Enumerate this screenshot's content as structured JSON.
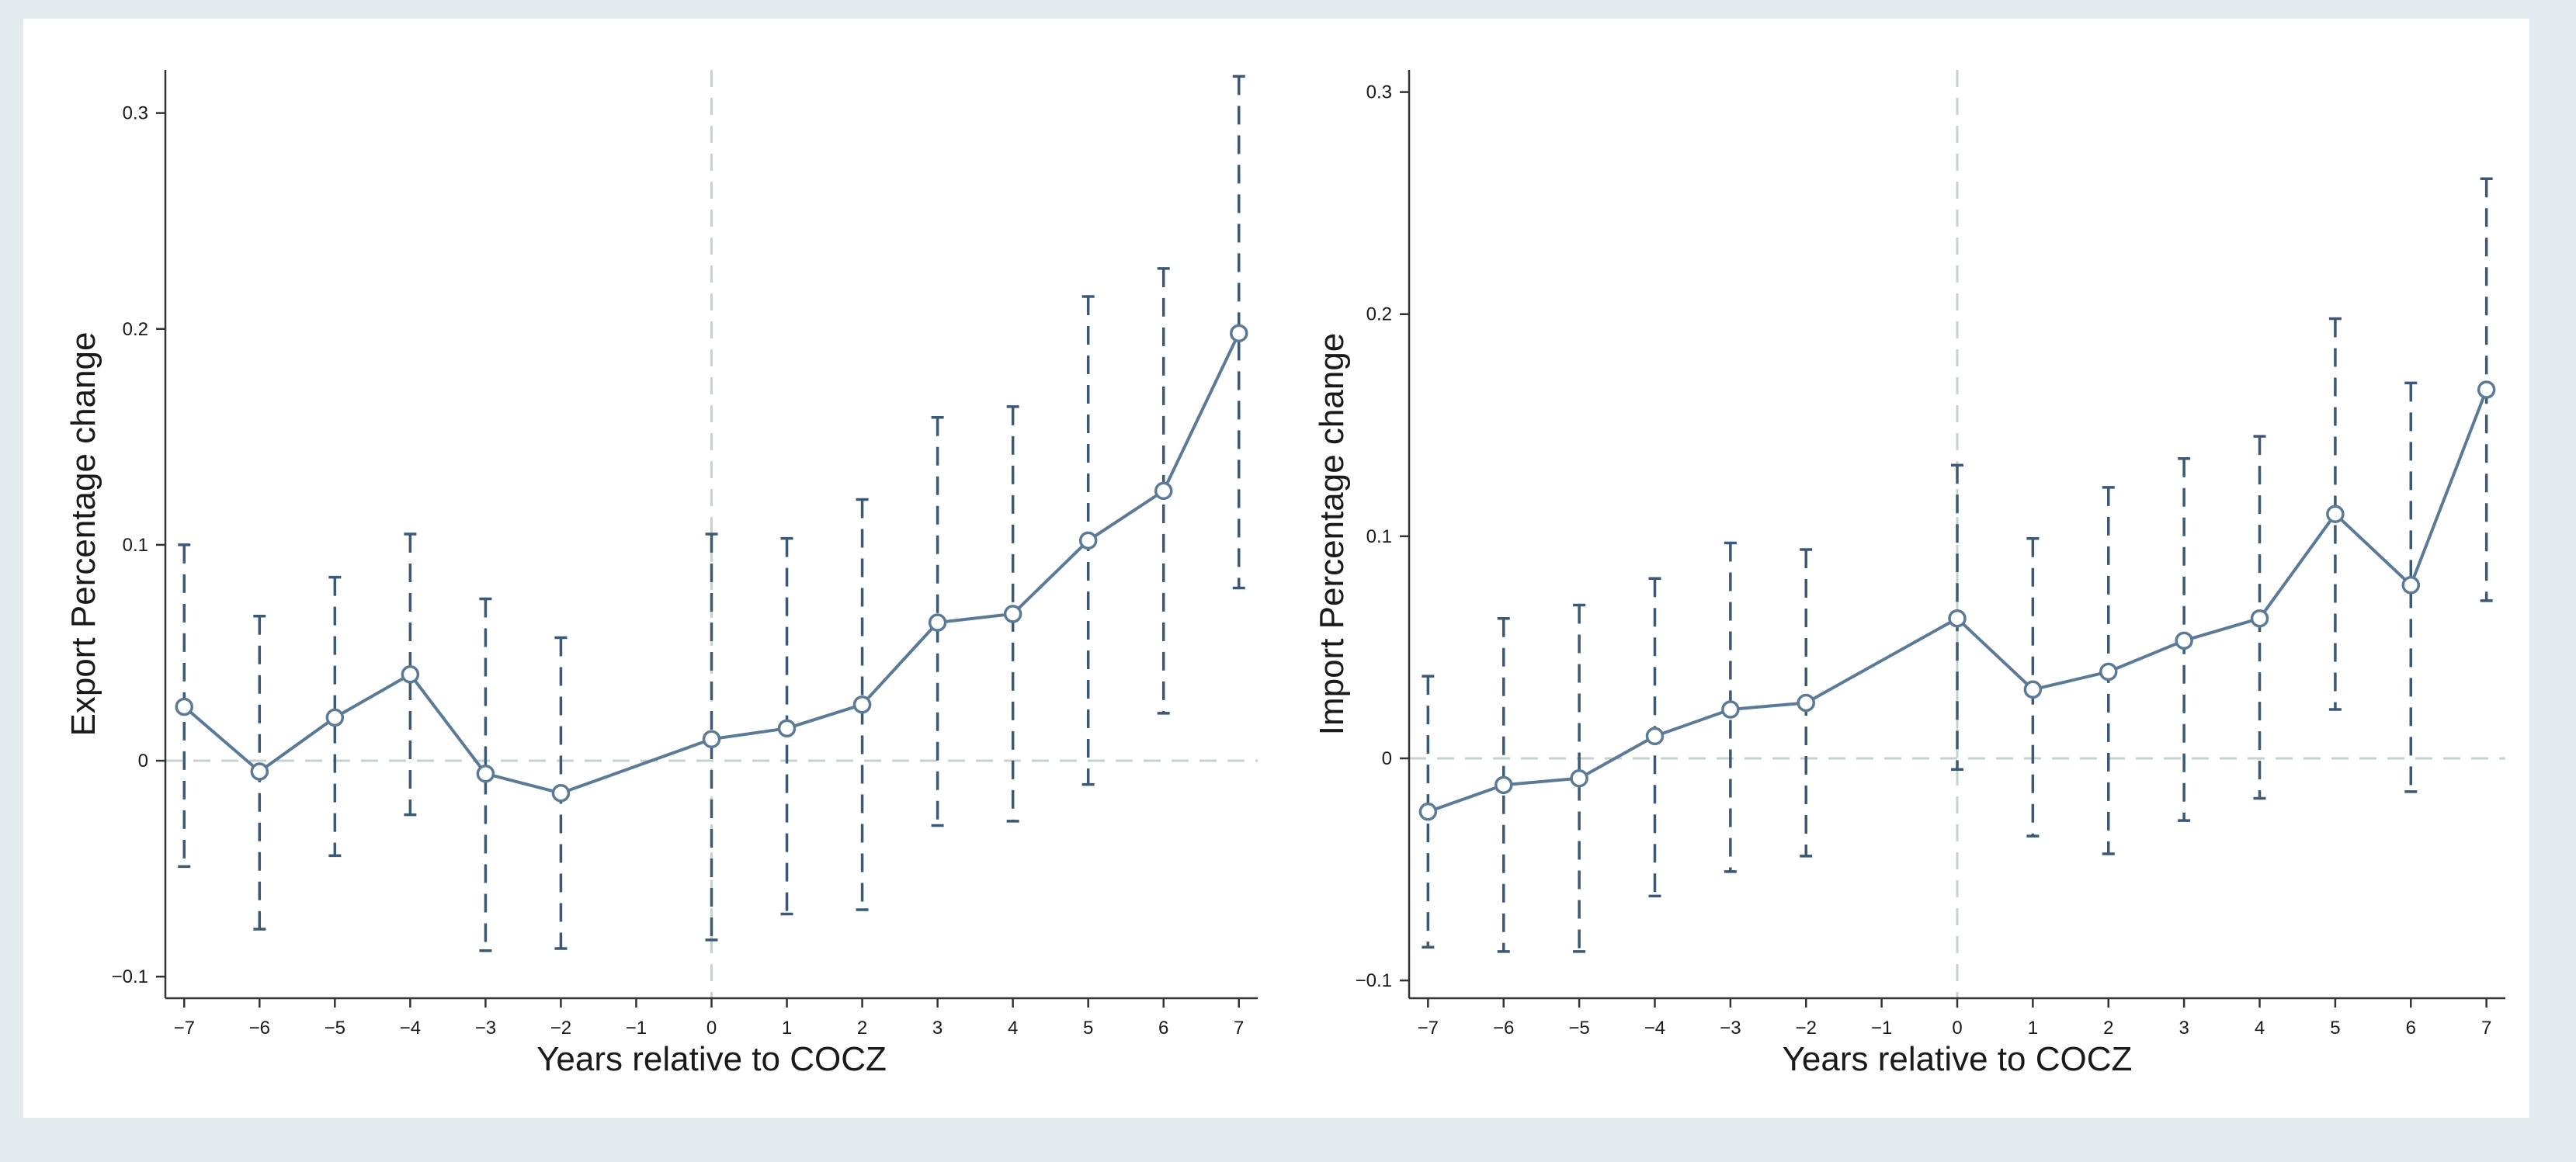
{
  "colors": {
    "series": "#5b7a98",
    "ci": "#3b5874",
    "refline": "#c5d3cf",
    "axis": "#333333",
    "background": "#e3ebef"
  },
  "chart_data": [
    {
      "type": "line",
      "title": "",
      "xlabel": "Years relative to COCZ",
      "ylabel": "Export Percentage change",
      "x": [
        -7,
        -6,
        -5,
        -4,
        -3,
        -2,
        0,
        1,
        2,
        3,
        4,
        5,
        6,
        7
      ],
      "xticks": [
        -7,
        -6,
        -5,
        -4,
        -3,
        -2,
        -1,
        0,
        1,
        2,
        3,
        4,
        5,
        6,
        7
      ],
      "xtick_labels": [
        "−7",
        "−6",
        "−5",
        "−4",
        "−3",
        "−2",
        "−1",
        "0",
        "1",
        "2",
        "3",
        "4",
        "5",
        "6",
        "7"
      ],
      "yticks": [
        -0.1,
        0,
        0.1,
        0.2,
        0.3
      ],
      "ytick_labels": [
        "−0.1",
        "0",
        "0.1",
        "0.2",
        "0.3"
      ],
      "xlim": [
        -7.25,
        7.25
      ],
      "ylim": [
        -0.11,
        0.32
      ],
      "series": [
        {
          "name": "Export Percentage change",
          "values": [
            0.025,
            -0.005,
            0.02,
            0.04,
            -0.006,
            -0.015,
            0.01,
            0.015,
            0.026,
            0.064,
            0.068,
            0.102,
            0.125,
            0.198
          ],
          "ci_low": [
            -0.049,
            -0.078,
            -0.044,
            -0.025,
            -0.088,
            -0.087,
            -0.083,
            -0.071,
            -0.069,
            -0.03,
            -0.028,
            -0.011,
            0.022,
            0.08
          ],
          "ci_high": [
            0.1,
            0.067,
            0.085,
            0.105,
            0.075,
            0.057,
            0.105,
            0.103,
            0.121,
            0.159,
            0.164,
            0.215,
            0.228,
            0.317
          ]
        }
      ],
      "reference_lines": {
        "x": 0,
        "y": 0
      }
    },
    {
      "type": "line",
      "title": "",
      "xlabel": "Years relative to COCZ",
      "ylabel": "Import Percentage change",
      "x": [
        -7,
        -6,
        -5,
        -4,
        -3,
        -2,
        0,
        1,
        2,
        3,
        4,
        5,
        6,
        7
      ],
      "xticks": [
        -7,
        -6,
        -5,
        -4,
        -3,
        -2,
        -1,
        0,
        1,
        2,
        3,
        4,
        5,
        6,
        7
      ],
      "xtick_labels": [
        "−7",
        "−6",
        "−5",
        "−4",
        "−3",
        "−2",
        "−1",
        "0",
        "1",
        "2",
        "3",
        "4",
        "5",
        "6",
        "7"
      ],
      "yticks": [
        -0.1,
        0,
        0.1,
        0.2,
        0.3
      ],
      "ytick_labels": [
        "−0.1",
        "0",
        "0.1",
        "0.2",
        "0.3"
      ],
      "xlim": [
        -7.25,
        7.25
      ],
      "ylim": [
        -0.108,
        0.31
      ],
      "series": [
        {
          "name": "Import Percentage change",
          "values": [
            -0.024,
            -0.012,
            -0.009,
            0.01,
            0.022,
            0.025,
            0.063,
            0.031,
            0.039,
            0.053,
            0.063,
            0.11,
            0.078,
            0.166
          ],
          "ci_low": [
            -0.085,
            -0.087,
            -0.087,
            -0.062,
            -0.051,
            -0.044,
            -0.005,
            -0.035,
            -0.043,
            -0.028,
            -0.018,
            0.022,
            -0.015,
            0.071
          ],
          "ci_high": [
            0.037,
            0.063,
            0.069,
            0.081,
            0.097,
            0.094,
            0.132,
            0.099,
            0.122,
            0.135,
            0.145,
            0.198,
            0.169,
            0.261
          ]
        }
      ],
      "reference_lines": {
        "x": 0,
        "y": 0
      }
    }
  ]
}
